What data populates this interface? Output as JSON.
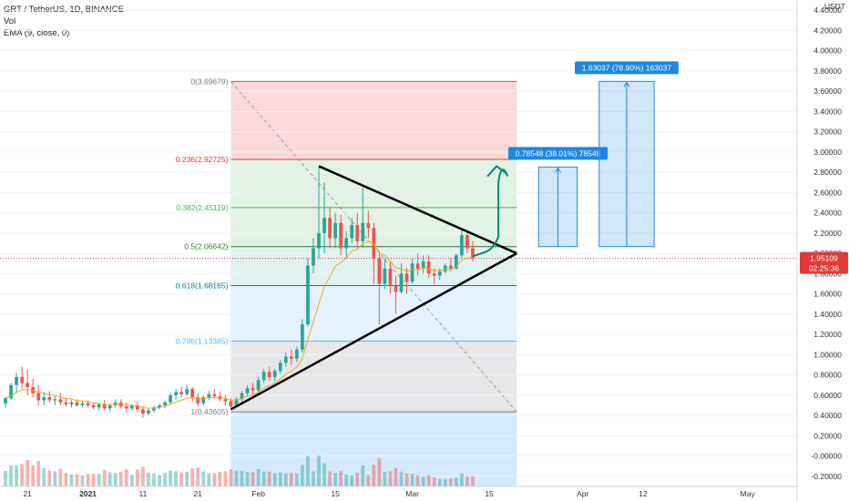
{
  "legend": {
    "title": "GRT / TetherUS, 1D, BINANCE",
    "vol": "Vol",
    "ema": "EMA (9, close, 0)"
  },
  "chart_data": {
    "type": "candlestick",
    "x_axis": {
      "ticks": [
        "21",
        "2021",
        "11",
        "21",
        "Feb",
        "15",
        "Mar",
        "15",
        "Apr",
        "12",
        "May"
      ],
      "range": [
        "2020-12-16",
        "2021-05-10"
      ]
    },
    "y_axis": {
      "currency": "USDT",
      "ticks": [
        "4.40000",
        "4.20000",
        "4.00000",
        "3.80000",
        "3.60000",
        "3.40000",
        "3.20000",
        "3.00000",
        "2.80000",
        "2.60000",
        "2.40000",
        "2.20000",
        "2.00000",
        "1.80000",
        "1.60000",
        "1.40000",
        "1.20000",
        "1.00000",
        "0.80000",
        "0.60000",
        "0.40000",
        "0.20000",
        "-0.00000",
        "-0.20000"
      ],
      "range": [
        -0.3,
        4.5
      ]
    },
    "current_price": {
      "label": "1.95109",
      "value": 1.95109,
      "countdown": "02:25:36",
      "color": "#e53935"
    },
    "fib_levels": [
      {
        "label": "0(3.69679)",
        "value": 3.69679,
        "color": "#787b86"
      },
      {
        "label": "0.236(2.92725)",
        "value": 2.92725,
        "color": "#e53935"
      },
      {
        "label": "0.382(2.45119)",
        "value": 2.45119,
        "color": "#4caf50"
      },
      {
        "label": "0.5(2.06642)",
        "value": 2.06642,
        "color": "#2e7d32"
      },
      {
        "label": "0.618(1.68165)",
        "value": 1.68165,
        "color": "#00897b"
      },
      {
        "label": "0.786(1.13385)",
        "value": 1.13385,
        "color": "#64b5f6"
      },
      {
        "label": "1(0.43605)",
        "value": 0.43605,
        "color": "#787b86"
      }
    ],
    "measures": [
      {
        "label": "0.78548 (38.01%) 78548",
        "from": 2.06642,
        "to": 2.8519
      },
      {
        "label": "1.63037 (78.90%) 163037",
        "from": 2.06642,
        "to": 3.69679
      }
    ],
    "colors": {
      "up": "#26a69a",
      "down": "#ef5350",
      "ema": "#f5a623",
      "measure": "#1e88e5",
      "projection": "#00897b",
      "triangle": "#000000"
    },
    "candles": [
      {
        "d": "2020-12-17",
        "o": 0.52,
        "h": 0.58,
        "l": 0.48,
        "c": 0.57
      },
      {
        "d": "2020-12-18",
        "o": 0.57,
        "h": 0.72,
        "l": 0.55,
        "c": 0.7
      },
      {
        "d": "2020-12-19",
        "o": 0.7,
        "h": 0.82,
        "l": 0.62,
        "c": 0.78
      },
      {
        "d": "2020-12-20",
        "o": 0.78,
        "h": 0.88,
        "l": 0.66,
        "c": 0.72
      },
      {
        "d": "2020-12-21",
        "o": 0.72,
        "h": 0.85,
        "l": 0.6,
        "c": 0.68
      },
      {
        "d": "2020-12-22",
        "o": 0.68,
        "h": 0.76,
        "l": 0.58,
        "c": 0.62
      },
      {
        "d": "2020-12-23",
        "o": 0.62,
        "h": 0.7,
        "l": 0.5,
        "c": 0.55
      },
      {
        "d": "2020-12-24",
        "o": 0.55,
        "h": 0.63,
        "l": 0.5,
        "c": 0.58
      },
      {
        "d": "2020-12-25",
        "o": 0.58,
        "h": 0.64,
        "l": 0.53,
        "c": 0.55
      },
      {
        "d": "2020-12-26",
        "o": 0.55,
        "h": 0.6,
        "l": 0.5,
        "c": 0.56
      },
      {
        "d": "2020-12-27",
        "o": 0.56,
        "h": 0.62,
        "l": 0.5,
        "c": 0.53
      },
      {
        "d": "2020-12-28",
        "o": 0.53,
        "h": 0.57,
        "l": 0.49,
        "c": 0.51
      },
      {
        "d": "2020-12-29",
        "o": 0.51,
        "h": 0.55,
        "l": 0.48,
        "c": 0.53
      },
      {
        "d": "2020-12-30",
        "o": 0.53,
        "h": 0.56,
        "l": 0.49,
        "c": 0.5
      },
      {
        "d": "2020-12-31",
        "o": 0.5,
        "h": 0.54,
        "l": 0.48,
        "c": 0.52
      },
      {
        "d": "2021-01-01",
        "o": 0.52,
        "h": 0.55,
        "l": 0.48,
        "c": 0.5
      },
      {
        "d": "2021-01-02",
        "o": 0.5,
        "h": 0.53,
        "l": 0.46,
        "c": 0.48
      },
      {
        "d": "2021-01-03",
        "o": 0.48,
        "h": 0.52,
        "l": 0.45,
        "c": 0.51
      },
      {
        "d": "2021-01-04",
        "o": 0.51,
        "h": 0.55,
        "l": 0.45,
        "c": 0.47
      },
      {
        "d": "2021-01-05",
        "o": 0.47,
        "h": 0.52,
        "l": 0.44,
        "c": 0.5
      },
      {
        "d": "2021-01-06",
        "o": 0.5,
        "h": 0.56,
        "l": 0.48,
        "c": 0.53
      },
      {
        "d": "2021-01-07",
        "o": 0.53,
        "h": 0.56,
        "l": 0.47,
        "c": 0.49
      },
      {
        "d": "2021-01-08",
        "o": 0.49,
        "h": 0.53,
        "l": 0.43,
        "c": 0.47
      },
      {
        "d": "2021-01-09",
        "o": 0.47,
        "h": 0.51,
        "l": 0.45,
        "c": 0.5
      },
      {
        "d": "2021-01-10",
        "o": 0.5,
        "h": 0.54,
        "l": 0.44,
        "c": 0.46
      },
      {
        "d": "2021-01-11",
        "o": 0.46,
        "h": 0.49,
        "l": 0.38,
        "c": 0.42
      },
      {
        "d": "2021-01-12",
        "o": 0.42,
        "h": 0.47,
        "l": 0.4,
        "c": 0.45
      },
      {
        "d": "2021-01-13",
        "o": 0.45,
        "h": 0.5,
        "l": 0.43,
        "c": 0.48
      },
      {
        "d": "2021-01-14",
        "o": 0.48,
        "h": 0.52,
        "l": 0.46,
        "c": 0.5
      },
      {
        "d": "2021-01-15",
        "o": 0.5,
        "h": 0.55,
        "l": 0.47,
        "c": 0.53
      },
      {
        "d": "2021-01-16",
        "o": 0.53,
        "h": 0.62,
        "l": 0.51,
        "c": 0.6
      },
      {
        "d": "2021-01-17",
        "o": 0.6,
        "h": 0.66,
        "l": 0.55,
        "c": 0.63
      },
      {
        "d": "2021-01-18",
        "o": 0.63,
        "h": 0.68,
        "l": 0.58,
        "c": 0.61
      },
      {
        "d": "2021-01-19",
        "o": 0.61,
        "h": 0.7,
        "l": 0.59,
        "c": 0.66
      },
      {
        "d": "2021-01-20",
        "o": 0.66,
        "h": 0.68,
        "l": 0.54,
        "c": 0.58
      },
      {
        "d": "2021-01-21",
        "o": 0.58,
        "h": 0.62,
        "l": 0.49,
        "c": 0.52
      },
      {
        "d": "2021-01-22",
        "o": 0.52,
        "h": 0.6,
        "l": 0.5,
        "c": 0.58
      },
      {
        "d": "2021-01-23",
        "o": 0.58,
        "h": 0.64,
        "l": 0.55,
        "c": 0.61
      },
      {
        "d": "2021-01-24",
        "o": 0.61,
        "h": 0.66,
        "l": 0.57,
        "c": 0.59
      },
      {
        "d": "2021-01-25",
        "o": 0.59,
        "h": 0.64,
        "l": 0.54,
        "c": 0.56
      },
      {
        "d": "2021-01-26",
        "o": 0.56,
        "h": 0.6,
        "l": 0.5,
        "c": 0.54
      },
      {
        "d": "2021-01-27",
        "o": 0.54,
        "h": 0.57,
        "l": 0.46,
        "c": 0.49
      },
      {
        "d": "2021-01-28",
        "o": 0.49,
        "h": 0.58,
        "l": 0.48,
        "c": 0.56
      },
      {
        "d": "2021-01-29",
        "o": 0.56,
        "h": 0.64,
        "l": 0.53,
        "c": 0.62
      },
      {
        "d": "2021-01-30",
        "o": 0.62,
        "h": 0.7,
        "l": 0.59,
        "c": 0.67
      },
      {
        "d": "2021-01-31",
        "o": 0.67,
        "h": 0.72,
        "l": 0.61,
        "c": 0.65
      },
      {
        "d": "2021-02-01",
        "o": 0.65,
        "h": 0.78,
        "l": 0.63,
        "c": 0.75
      },
      {
        "d": "2021-02-02",
        "o": 0.75,
        "h": 0.86,
        "l": 0.72,
        "c": 0.83
      },
      {
        "d": "2021-02-03",
        "o": 0.83,
        "h": 0.88,
        "l": 0.74,
        "c": 0.78
      },
      {
        "d": "2021-02-04",
        "o": 0.78,
        "h": 0.86,
        "l": 0.74,
        "c": 0.84
      },
      {
        "d": "2021-02-05",
        "o": 0.84,
        "h": 0.95,
        "l": 0.81,
        "c": 0.92
      },
      {
        "d": "2021-02-06",
        "o": 0.92,
        "h": 1.02,
        "l": 0.88,
        "c": 0.98
      },
      {
        "d": "2021-02-07",
        "o": 0.98,
        "h": 1.05,
        "l": 0.9,
        "c": 0.96
      },
      {
        "d": "2021-02-08",
        "o": 0.96,
        "h": 1.08,
        "l": 0.93,
        "c": 1.05
      },
      {
        "d": "2021-02-09",
        "o": 1.05,
        "h": 1.35,
        "l": 1.02,
        "c": 1.3
      },
      {
        "d": "2021-02-10",
        "o": 1.3,
        "h": 1.95,
        "l": 1.28,
        "c": 1.88
      },
      {
        "d": "2021-02-11",
        "o": 1.88,
        "h": 2.15,
        "l": 1.8,
        "c": 2.05
      },
      {
        "d": "2021-02-12",
        "o": 2.05,
        "h": 2.85,
        "l": 1.95,
        "c": 2.2
      },
      {
        "d": "2021-02-13",
        "o": 2.2,
        "h": 2.7,
        "l": 2.0,
        "c": 2.35
      },
      {
        "d": "2021-02-14",
        "o": 2.35,
        "h": 2.45,
        "l": 2.05,
        "c": 2.15
      },
      {
        "d": "2021-02-15",
        "o": 2.15,
        "h": 2.4,
        "l": 2.05,
        "c": 2.3
      },
      {
        "d": "2021-02-16",
        "o": 2.3,
        "h": 2.38,
        "l": 1.98,
        "c": 2.05
      },
      {
        "d": "2021-02-17",
        "o": 2.05,
        "h": 2.22,
        "l": 1.95,
        "c": 2.15
      },
      {
        "d": "2021-02-18",
        "o": 2.15,
        "h": 2.35,
        "l": 2.1,
        "c": 2.28
      },
      {
        "d": "2021-02-19",
        "o": 2.28,
        "h": 2.4,
        "l": 2.05,
        "c": 2.12
      },
      {
        "d": "2021-02-20",
        "o": 2.12,
        "h": 2.65,
        "l": 2.05,
        "c": 2.3
      },
      {
        "d": "2021-02-21",
        "o": 2.3,
        "h": 2.42,
        "l": 2.15,
        "c": 2.25
      },
      {
        "d": "2021-02-22",
        "o": 2.25,
        "h": 2.3,
        "l": 1.7,
        "c": 1.95
      },
      {
        "d": "2021-02-23",
        "o": 1.95,
        "h": 2.0,
        "l": 1.3,
        "c": 1.7
      },
      {
        "d": "2021-02-24",
        "o": 1.7,
        "h": 1.95,
        "l": 1.65,
        "c": 1.85
      },
      {
        "d": "2021-02-25",
        "o": 1.85,
        "h": 1.92,
        "l": 1.6,
        "c": 1.68
      },
      {
        "d": "2021-02-26",
        "o": 1.68,
        "h": 1.78,
        "l": 1.4,
        "c": 1.62
      },
      {
        "d": "2021-02-27",
        "o": 1.62,
        "h": 1.9,
        "l": 1.6,
        "c": 1.8
      },
      {
        "d": "2021-02-28",
        "o": 1.8,
        "h": 1.86,
        "l": 1.6,
        "c": 1.72
      },
      {
        "d": "2021-03-01",
        "o": 1.72,
        "h": 1.95,
        "l": 1.7,
        "c": 1.9
      },
      {
        "d": "2021-03-02",
        "o": 1.9,
        "h": 2.0,
        "l": 1.78,
        "c": 1.85
      },
      {
        "d": "2021-03-03",
        "o": 1.85,
        "h": 1.98,
        "l": 1.8,
        "c": 1.92
      },
      {
        "d": "2021-03-04",
        "o": 1.92,
        "h": 1.98,
        "l": 1.76,
        "c": 1.8
      },
      {
        "d": "2021-03-05",
        "o": 1.8,
        "h": 1.85,
        "l": 1.7,
        "c": 1.78
      },
      {
        "d": "2021-03-06",
        "o": 1.78,
        "h": 1.85,
        "l": 1.74,
        "c": 1.82
      },
      {
        "d": "2021-03-07",
        "o": 1.82,
        "h": 1.9,
        "l": 1.8,
        "c": 1.88
      },
      {
        "d": "2021-03-08",
        "o": 1.88,
        "h": 1.95,
        "l": 1.82,
        "c": 1.85
      },
      {
        "d": "2021-03-09",
        "o": 1.85,
        "h": 2.0,
        "l": 1.84,
        "c": 1.98
      },
      {
        "d": "2021-03-10",
        "o": 1.98,
        "h": 2.25,
        "l": 1.95,
        "c": 2.18
      },
      {
        "d": "2021-03-11",
        "o": 2.18,
        "h": 2.2,
        "l": 2.0,
        "c": 2.05
      },
      {
        "d": "2021-03-12",
        "o": 2.05,
        "h": 2.12,
        "l": 1.92,
        "c": 1.95
      }
    ]
  }
}
